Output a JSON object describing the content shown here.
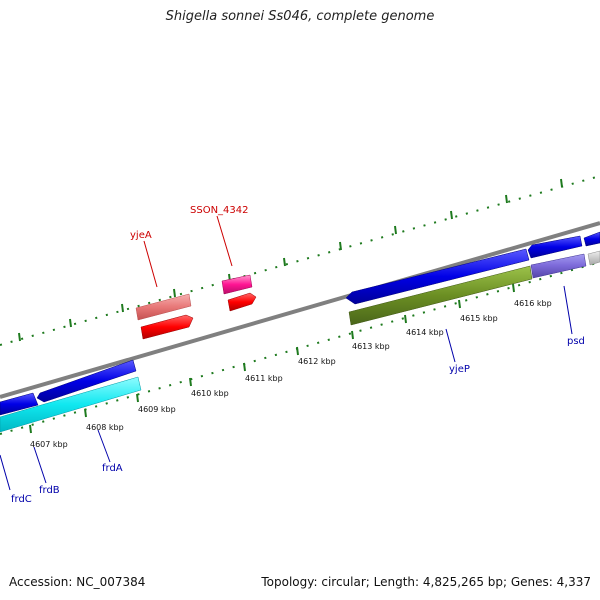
{
  "title": "Shigella sonnei Ss046, complete genome",
  "accession": "Accession: NC_007384",
  "stats": "Topology: circular; Length: 4,825,265 bp; Genes: 4,337",
  "colors": {
    "backbone": "#808080",
    "tick": "#1e7a1e",
    "label_forward": "#cc0000",
    "label_reverse": "#0000aa"
  },
  "ticks": [
    {
      "label": "4607 kbp"
    },
    {
      "label": "4608 kbp"
    },
    {
      "label": "4609 kbp"
    },
    {
      "label": "4610 kbp"
    },
    {
      "label": "4611 kbp"
    },
    {
      "label": "4612 kbp"
    },
    {
      "label": "4613 kbp"
    },
    {
      "label": "4614 kbp"
    },
    {
      "label": "4615 kbp"
    },
    {
      "label": "4616 kbp"
    }
  ],
  "labels": [
    {
      "text": "SSON_4342"
    },
    {
      "text": "yjeA"
    },
    {
      "text": "yjeP"
    },
    {
      "text": "psd"
    },
    {
      "text": "frdA"
    },
    {
      "text": "frdB"
    },
    {
      "text": "frdC"
    }
  ]
}
